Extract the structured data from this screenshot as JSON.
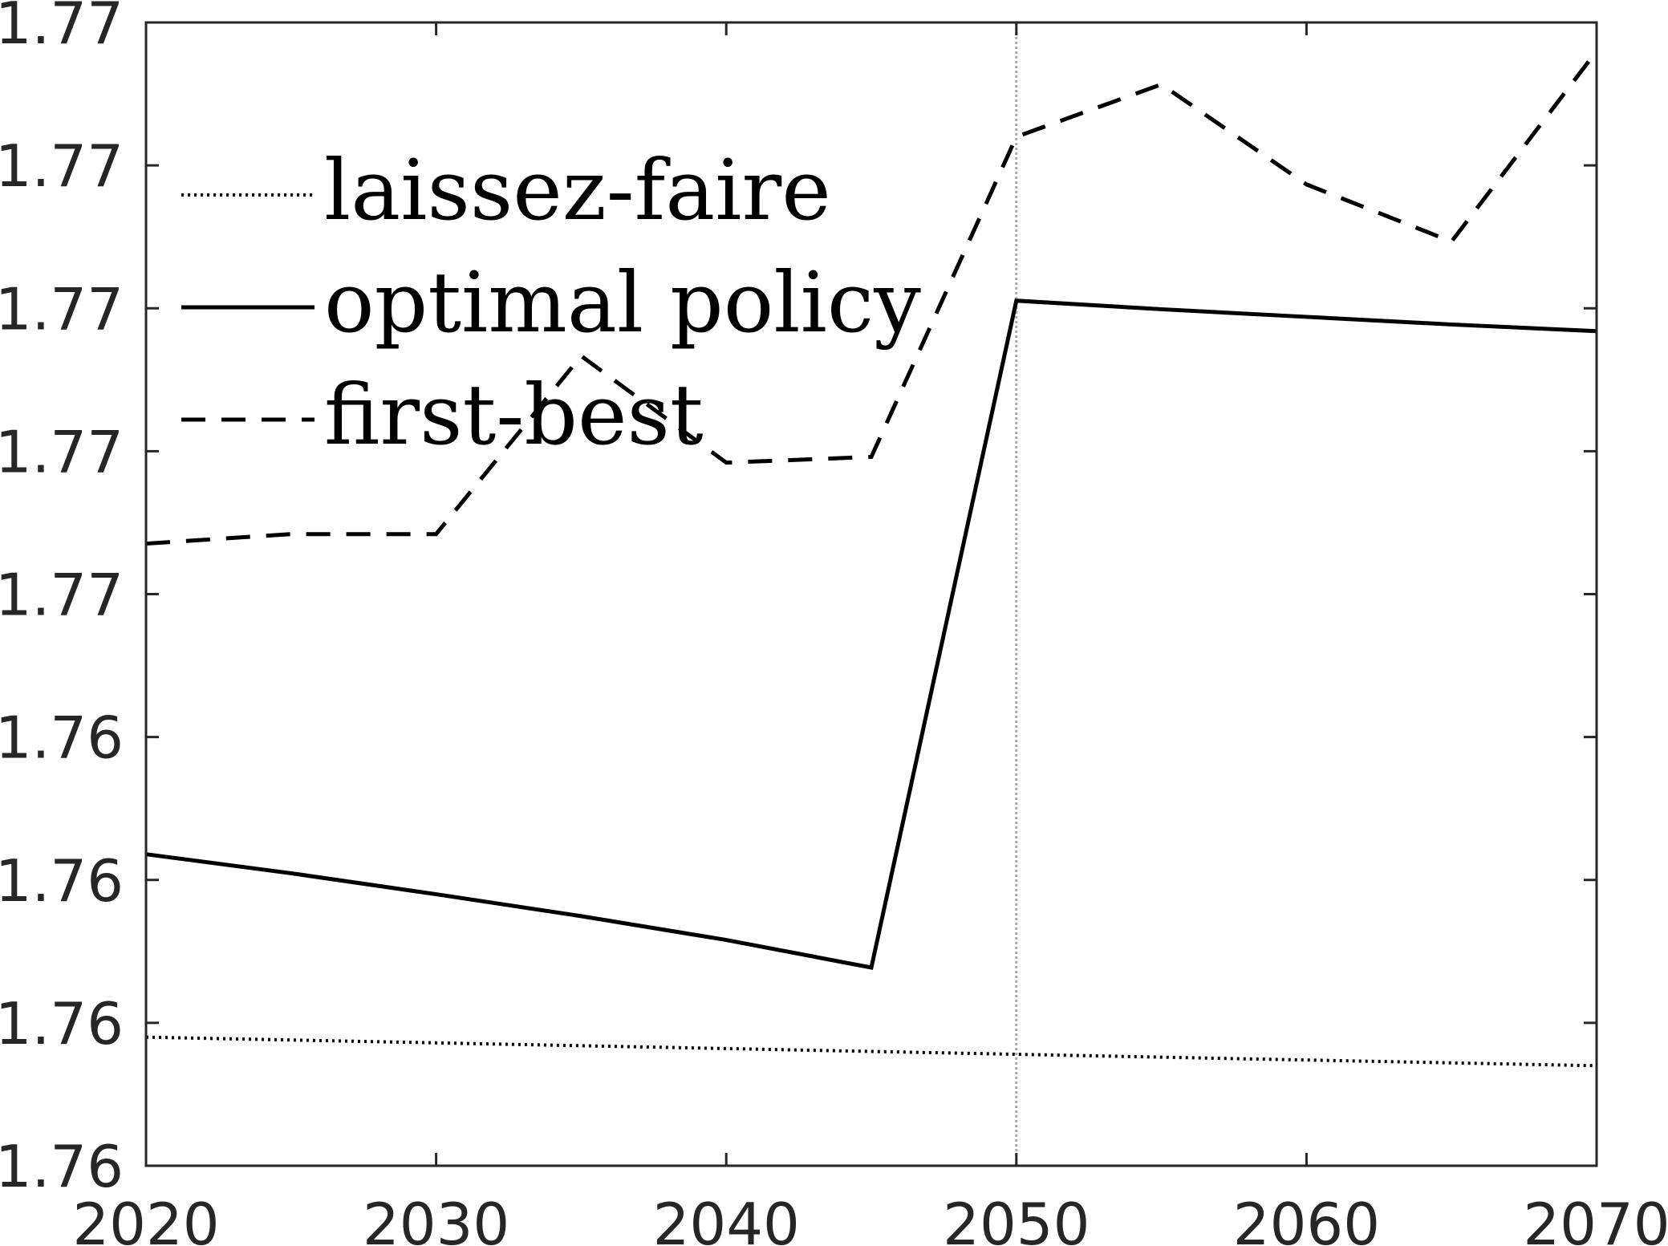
{
  "chart_data": {
    "type": "line",
    "title": "",
    "xlabel": "",
    "ylabel": "",
    "xlim": [
      2020,
      2070
    ],
    "ylim": [
      1.7595,
      1.7715
    ],
    "x_ticks": [
      2020,
      2030,
      2040,
      2050,
      2060,
      2070
    ],
    "y_ticks": [
      {
        "value": 1.7595,
        "label": "1.76"
      },
      {
        "value": 1.761,
        "label": "1.76"
      },
      {
        "value": 1.7625,
        "label": "1.76"
      },
      {
        "value": 1.764,
        "label": "1.76"
      },
      {
        "value": 1.7655,
        "label": "1.77"
      },
      {
        "value": 1.767,
        "label": "1.77"
      },
      {
        "value": 1.7685,
        "label": "1.77"
      },
      {
        "value": 1.77,
        "label": "1.77"
      },
      {
        "value": 1.7715,
        "label": "1.77"
      }
    ],
    "vline_x": 2050,
    "grid": false,
    "legend_position": "top-left",
    "series": [
      {
        "name": "laissez-faire",
        "style": "dotted",
        "color": "#000000",
        "x": [
          2020,
          2025,
          2030,
          2035,
          2040,
          2045,
          2050,
          2055,
          2060,
          2065,
          2070
        ],
        "y": [
          1.76085,
          1.76082,
          1.76079,
          1.76076,
          1.76073,
          1.7607,
          1.76067,
          1.76064,
          1.76061,
          1.76058,
          1.76055
        ]
      },
      {
        "name": "optimal policy",
        "style": "solid",
        "color": "#000000",
        "x": [
          2020,
          2025,
          2030,
          2035,
          2040,
          2045,
          2050,
          2055,
          2060,
          2065,
          2070
        ],
        "y": [
          1.76277,
          1.76257,
          1.76235,
          1.76212,
          1.76187,
          1.76158,
          1.76858,
          1.76849,
          1.76841,
          1.76833,
          1.76826
        ]
      },
      {
        "name": "first-best",
        "style": "dashed",
        "color": "#000000",
        "x": [
          2020,
          2025,
          2030,
          2035,
          2040,
          2045,
          2050,
          2055,
          2060,
          2065,
          2070
        ],
        "y": [
          1.76603,
          1.76613,
          1.76613,
          1.768,
          1.76688,
          1.76694,
          1.7703,
          1.77085,
          1.7698,
          1.7692,
          1.7712
        ]
      }
    ]
  },
  "colors": {
    "axis": "#262626",
    "vline": "#aaaaaa",
    "background": "#ffffff"
  }
}
